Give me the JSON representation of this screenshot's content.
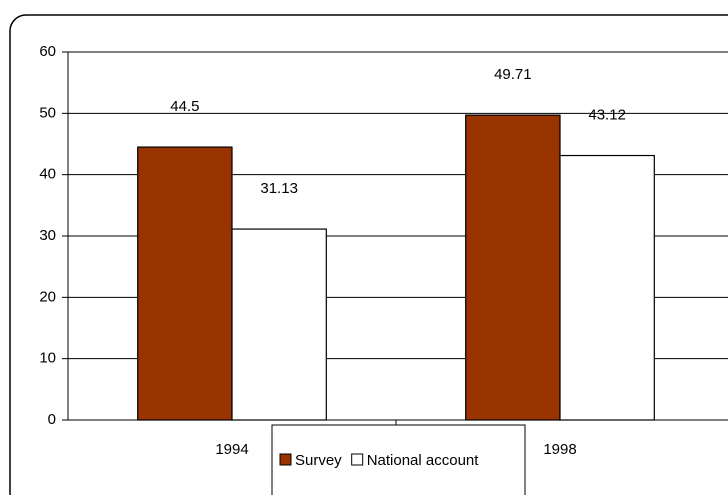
{
  "chart_data": {
    "type": "bar",
    "categories": [
      "1994",
      "1998"
    ],
    "series": [
      {
        "name": "Survey",
        "color": "#993300",
        "values": [
          44.5,
          49.71
        ]
      },
      {
        "name": "National account",
        "color": "#ffffff",
        "values": [
          31.13,
          43.12
        ]
      }
    ],
    "ylim": [
      0,
      60
    ],
    "yticks": [
      0,
      10,
      20,
      30,
      40,
      50,
      60
    ],
    "grid": true,
    "legend": "bottom"
  }
}
